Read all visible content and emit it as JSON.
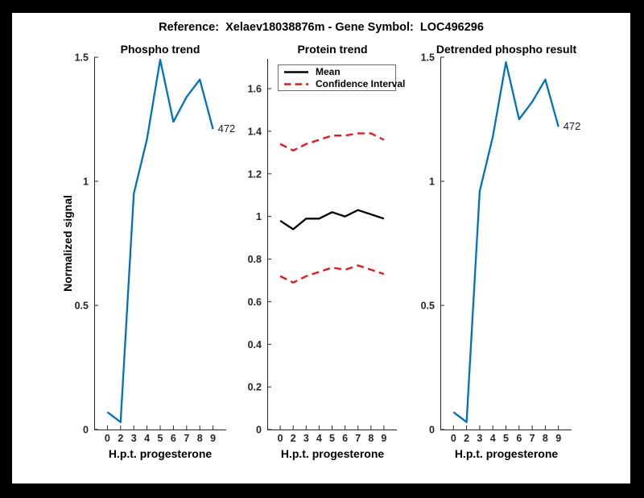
{
  "title": "Reference:  Xelaev18038876m - Gene Symbol:  LOC496296",
  "colors": {
    "background": "#000000",
    "figure_background": "#ffffff",
    "blue_line": "#0072bd",
    "mean_line": "#000000",
    "ci_line": "#f50f0f",
    "axis": "#262626",
    "tick_text": "#262626"
  },
  "chart_data": [
    {
      "type": "line",
      "title": "Phospho trend",
      "xlabel": "H.p.t. progesterone",
      "ylabel": "Normalized signal",
      "x_ticklabels": [
        "0",
        "2",
        "3",
        "4",
        "5",
        "6",
        "7",
        "8",
        "9"
      ],
      "ylim": [
        0,
        1.5
      ],
      "yticks": [
        0,
        0.5,
        1,
        1.5
      ],
      "ytick_labels": [
        "0",
        "0.5",
        "1",
        "1.5"
      ],
      "grid": false,
      "series": [
        {
          "name": "phospho-signal",
          "color_key": "blue_line",
          "style": "solid",
          "values": [
            0.07,
            0.03,
            0.95,
            1.17,
            1.49,
            1.24,
            1.34,
            1.41,
            1.21
          ]
        }
      ],
      "annotation": "472"
    },
    {
      "type": "line",
      "title": "Protein trend",
      "xlabel": "H.p.t. progesterone",
      "ylabel": "",
      "x_ticklabels": [
        "0",
        "2",
        "3",
        "4",
        "5",
        "6",
        "7",
        "8",
        "9"
      ],
      "ylim": [
        0,
        1.74
      ],
      "yticks": [
        0,
        0.2,
        0.4,
        0.6,
        0.8,
        1,
        1.2,
        1.4,
        1.6
      ],
      "ytick_labels": [
        "0",
        "0.2",
        "0.4",
        "0.6",
        "0.8",
        "1",
        "1.2",
        "1.4",
        "1.6"
      ],
      "grid": false,
      "series": [
        {
          "name": "mean",
          "color_key": "mean_line",
          "style": "solid",
          "values": [
            0.98,
            0.94,
            0.99,
            0.99,
            1.02,
            1.0,
            1.03,
            1.01,
            0.99
          ]
        },
        {
          "name": "confidence-interval-upper",
          "color_key": "ci_line",
          "style": "dashed",
          "values": [
            1.34,
            1.31,
            1.34,
            1.36,
            1.38,
            1.38,
            1.39,
            1.39,
            1.36
          ]
        },
        {
          "name": "confidence-interval-lower",
          "color_key": "ci_line",
          "style": "dashed",
          "values": [
            0.72,
            0.69,
            0.72,
            0.74,
            0.76,
            0.75,
            0.77,
            0.75,
            0.73
          ]
        }
      ],
      "legend": {
        "position": "top-left-inside",
        "entries": [
          {
            "label": "Mean",
            "style": "solid",
            "color_key": "mean_line"
          },
          {
            "label": "Confidence Interval",
            "style": "dashed",
            "color_key": "ci_line"
          }
        ]
      },
      "annotation": null
    },
    {
      "type": "line",
      "title": "Detrended phospho result",
      "xlabel": "H.p.t. progesterone",
      "ylabel": "",
      "x_ticklabels": [
        "0",
        "2",
        "3",
        "4",
        "5",
        "6",
        "7",
        "8",
        "9"
      ],
      "ylim": [
        0,
        1.5
      ],
      "yticks": [
        0,
        0.5,
        1,
        1.5
      ],
      "ytick_labels": [
        "0",
        "0.5",
        "1",
        "1.5"
      ],
      "grid": false,
      "series": [
        {
          "name": "detrended-phospho-signal",
          "color_key": "blue_line",
          "style": "solid",
          "values": [
            0.07,
            0.03,
            0.96,
            1.18,
            1.48,
            1.25,
            1.32,
            1.41,
            1.22
          ]
        }
      ],
      "annotation": "472"
    }
  ]
}
